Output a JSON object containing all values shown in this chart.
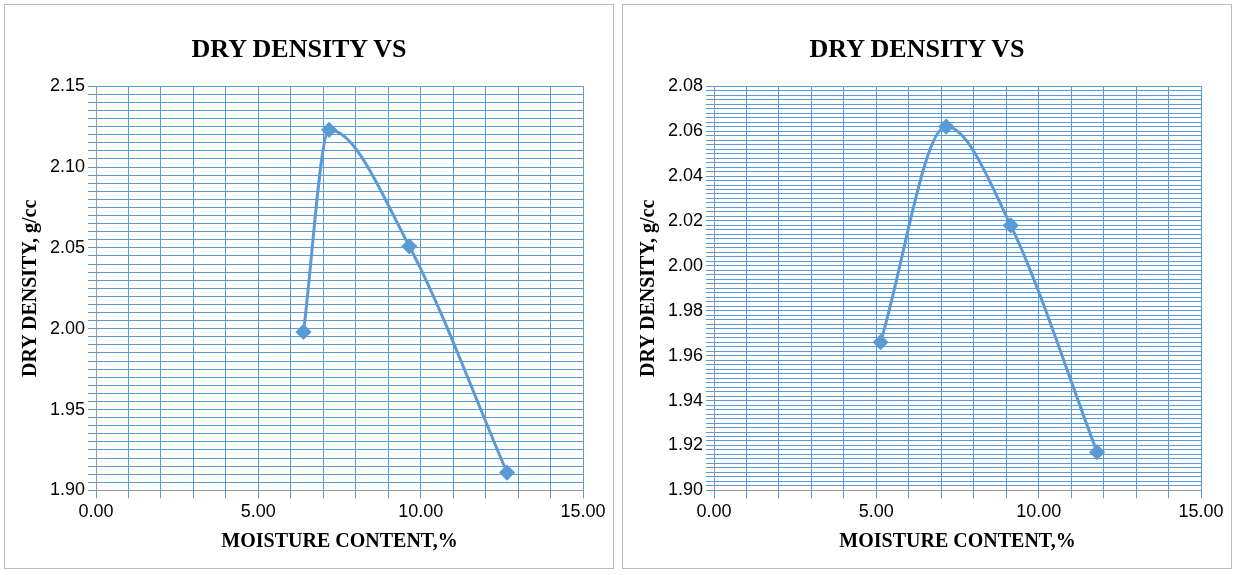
{
  "chart_data": [
    {
      "type": "line",
      "title": "DRY DENSITY VS",
      "xlabel": "MOISTURE CONTENT,%",
      "ylabel": "DRY DENSITY, g/cc",
      "grid": true,
      "legend": false,
      "marker": "diamond",
      "line_style": "solid",
      "xlim": [
        0,
        15
      ],
      "ylim": [
        1.9,
        2.15
      ],
      "xticks": [
        {
          "value": 0,
          "label": "0.00"
        },
        {
          "value": 1,
          "label": null
        },
        {
          "value": 2,
          "label": null
        },
        {
          "value": 3,
          "label": null
        },
        {
          "value": 4,
          "label": null
        },
        {
          "value": 5,
          "label": "5.00"
        },
        {
          "value": 6,
          "label": null
        },
        {
          "value": 7,
          "label": null
        },
        {
          "value": 8,
          "label": null
        },
        {
          "value": 9,
          "label": null
        },
        {
          "value": 10,
          "label": "10.00"
        },
        {
          "value": 11,
          "label": null
        },
        {
          "value": 12,
          "label": null
        },
        {
          "value": 13,
          "label": null
        },
        {
          "value": 14,
          "label": null
        },
        {
          "value": 15,
          "label": "15.00"
        }
      ],
      "yticks": [
        {
          "value": 1.9,
          "label": "1.90"
        },
        {
          "value": 1.905,
          "label": null
        },
        {
          "value": 1.91,
          "label": null
        },
        {
          "value": 1.915,
          "label": null
        },
        {
          "value": 1.92,
          "label": null
        },
        {
          "value": 1.925,
          "label": null
        },
        {
          "value": 1.93,
          "label": null
        },
        {
          "value": 1.935,
          "label": null
        },
        {
          "value": 1.94,
          "label": null
        },
        {
          "value": 1.945,
          "label": null
        },
        {
          "value": 1.95,
          "label": "1.95"
        },
        {
          "value": 1.955,
          "label": null
        },
        {
          "value": 1.96,
          "label": null
        },
        {
          "value": 1.965,
          "label": null
        },
        {
          "value": 1.97,
          "label": null
        },
        {
          "value": 1.975,
          "label": null
        },
        {
          "value": 1.98,
          "label": null
        },
        {
          "value": 1.985,
          "label": null
        },
        {
          "value": 1.99,
          "label": null
        },
        {
          "value": 1.995,
          "label": null
        },
        {
          "value": 2.0,
          "label": "2.00"
        },
        {
          "value": 2.005,
          "label": null
        },
        {
          "value": 2.01,
          "label": null
        },
        {
          "value": 2.015,
          "label": null
        },
        {
          "value": 2.02,
          "label": null
        },
        {
          "value": 2.025,
          "label": null
        },
        {
          "value": 2.03,
          "label": null
        },
        {
          "value": 2.035,
          "label": null
        },
        {
          "value": 2.04,
          "label": null
        },
        {
          "value": 2.045,
          "label": null
        },
        {
          "value": 2.05,
          "label": "2.05"
        },
        {
          "value": 2.055,
          "label": null
        },
        {
          "value": 2.06,
          "label": null
        },
        {
          "value": 2.065,
          "label": null
        },
        {
          "value": 2.07,
          "label": null
        },
        {
          "value": 2.075,
          "label": null
        },
        {
          "value": 2.08,
          "label": null
        },
        {
          "value": 2.085,
          "label": null
        },
        {
          "value": 2.09,
          "label": null
        },
        {
          "value": 2.095,
          "label": null
        },
        {
          "value": 2.1,
          "label": "2.10"
        },
        {
          "value": 2.105,
          "label": null
        },
        {
          "value": 2.11,
          "label": null
        },
        {
          "value": 2.115,
          "label": null
        },
        {
          "value": 2.12,
          "label": null
        },
        {
          "value": 2.125,
          "label": null
        },
        {
          "value": 2.13,
          "label": null
        },
        {
          "value": 2.135,
          "label": null
        },
        {
          "value": 2.14,
          "label": null
        },
        {
          "value": 2.145,
          "label": null
        },
        {
          "value": 2.15,
          "label": "2.15"
        }
      ],
      "x": [
        6.39,
        7.18,
        9.65,
        12.66
      ],
      "series": [
        {
          "color": "#5b9bd5",
          "values": [
            1.998,
            2.123,
            2.051,
            1.911
          ]
        }
      ]
    },
    {
      "type": "line",
      "title": "DRY DENSITY VS",
      "xlabel": "MOISTURE CONTENT,%",
      "ylabel": "DRY DENSITY, g/cc",
      "grid": true,
      "legend": false,
      "marker": "diamond",
      "line_style": "solid",
      "xlim": [
        0,
        15
      ],
      "ylim": [
        1.9,
        2.08
      ],
      "xticks": [
        {
          "value": 0,
          "label": "0.00"
        },
        {
          "value": 1,
          "label": null
        },
        {
          "value": 2,
          "label": null
        },
        {
          "value": 3,
          "label": null
        },
        {
          "value": 4,
          "label": null
        },
        {
          "value": 5,
          "label": "5.00"
        },
        {
          "value": 6,
          "label": null
        },
        {
          "value": 7,
          "label": null
        },
        {
          "value": 8,
          "label": null
        },
        {
          "value": 9,
          "label": null
        },
        {
          "value": 10,
          "label": "10.00"
        },
        {
          "value": 11,
          "label": null
        },
        {
          "value": 12,
          "label": null
        },
        {
          "value": 13,
          "label": null
        },
        {
          "value": 14,
          "label": null
        },
        {
          "value": 15,
          "label": "15.00"
        }
      ],
      "yticks": [
        {
          "value": 1.9,
          "label": "1.90"
        },
        {
          "value": 1.902,
          "label": null
        },
        {
          "value": 1.904,
          "label": null
        },
        {
          "value": 1.906,
          "label": null
        },
        {
          "value": 1.908,
          "label": null
        },
        {
          "value": 1.91,
          "label": null
        },
        {
          "value": 1.912,
          "label": null
        },
        {
          "value": 1.914,
          "label": null
        },
        {
          "value": 1.916,
          "label": null
        },
        {
          "value": 1.918,
          "label": null
        },
        {
          "value": 1.92,
          "label": "1.92"
        },
        {
          "value": 1.922,
          "label": null
        },
        {
          "value": 1.924,
          "label": null
        },
        {
          "value": 1.926,
          "label": null
        },
        {
          "value": 1.928,
          "label": null
        },
        {
          "value": 1.93,
          "label": null
        },
        {
          "value": 1.932,
          "label": null
        },
        {
          "value": 1.934,
          "label": null
        },
        {
          "value": 1.936,
          "label": null
        },
        {
          "value": 1.938,
          "label": null
        },
        {
          "value": 1.94,
          "label": "1.94"
        },
        {
          "value": 1.942,
          "label": null
        },
        {
          "value": 1.944,
          "label": null
        },
        {
          "value": 1.946,
          "label": null
        },
        {
          "value": 1.948,
          "label": null
        },
        {
          "value": 1.95,
          "label": null
        },
        {
          "value": 1.952,
          "label": null
        },
        {
          "value": 1.954,
          "label": null
        },
        {
          "value": 1.956,
          "label": null
        },
        {
          "value": 1.958,
          "label": null
        },
        {
          "value": 1.96,
          "label": "1.96"
        },
        {
          "value": 1.962,
          "label": null
        },
        {
          "value": 1.964,
          "label": null
        },
        {
          "value": 1.966,
          "label": null
        },
        {
          "value": 1.968,
          "label": null
        },
        {
          "value": 1.97,
          "label": null
        },
        {
          "value": 1.972,
          "label": null
        },
        {
          "value": 1.974,
          "label": null
        },
        {
          "value": 1.976,
          "label": null
        },
        {
          "value": 1.978,
          "label": null
        },
        {
          "value": 1.98,
          "label": "1.98"
        },
        {
          "value": 1.982,
          "label": null
        },
        {
          "value": 1.984,
          "label": null
        },
        {
          "value": 1.986,
          "label": null
        },
        {
          "value": 1.988,
          "label": null
        },
        {
          "value": 1.99,
          "label": null
        },
        {
          "value": 1.992,
          "label": null
        },
        {
          "value": 1.994,
          "label": null
        },
        {
          "value": 1.996,
          "label": null
        },
        {
          "value": 1.998,
          "label": null
        },
        {
          "value": 2.0,
          "label": "2.00"
        },
        {
          "value": 2.002,
          "label": null
        },
        {
          "value": 2.004,
          "label": null
        },
        {
          "value": 2.006,
          "label": null
        },
        {
          "value": 2.008,
          "label": null
        },
        {
          "value": 2.01,
          "label": null
        },
        {
          "value": 2.012,
          "label": null
        },
        {
          "value": 2.014,
          "label": null
        },
        {
          "value": 2.016,
          "label": null
        },
        {
          "value": 2.018,
          "label": null
        },
        {
          "value": 2.02,
          "label": "2.02"
        },
        {
          "value": 2.022,
          "label": null
        },
        {
          "value": 2.024,
          "label": null
        },
        {
          "value": 2.026,
          "label": null
        },
        {
          "value": 2.028,
          "label": null
        },
        {
          "value": 2.03,
          "label": null
        },
        {
          "value": 2.032,
          "label": null
        },
        {
          "value": 2.034,
          "label": null
        },
        {
          "value": 2.036,
          "label": null
        },
        {
          "value": 2.038,
          "label": null
        },
        {
          "value": 2.04,
          "label": "2.04"
        },
        {
          "value": 2.042,
          "label": null
        },
        {
          "value": 2.044,
          "label": null
        },
        {
          "value": 2.046,
          "label": null
        },
        {
          "value": 2.048,
          "label": null
        },
        {
          "value": 2.05,
          "label": null
        },
        {
          "value": 2.052,
          "label": null
        },
        {
          "value": 2.054,
          "label": null
        },
        {
          "value": 2.056,
          "label": null
        },
        {
          "value": 2.058,
          "label": null
        },
        {
          "value": 2.06,
          "label": "2.06"
        },
        {
          "value": 2.062,
          "label": null
        },
        {
          "value": 2.064,
          "label": null
        },
        {
          "value": 2.066,
          "label": null
        },
        {
          "value": 2.068,
          "label": null
        },
        {
          "value": 2.07,
          "label": null
        },
        {
          "value": 2.072,
          "label": null
        },
        {
          "value": 2.074,
          "label": null
        },
        {
          "value": 2.076,
          "label": null
        },
        {
          "value": 2.078,
          "label": null
        },
        {
          "value": 2.08,
          "label": "2.08"
        }
      ],
      "x": [
        5.13,
        7.15,
        9.14,
        11.8
      ],
      "series": [
        {
          "color": "#5b9bd5",
          "values": [
            1.966,
            2.062,
            2.018,
            1.917
          ]
        }
      ]
    }
  ]
}
